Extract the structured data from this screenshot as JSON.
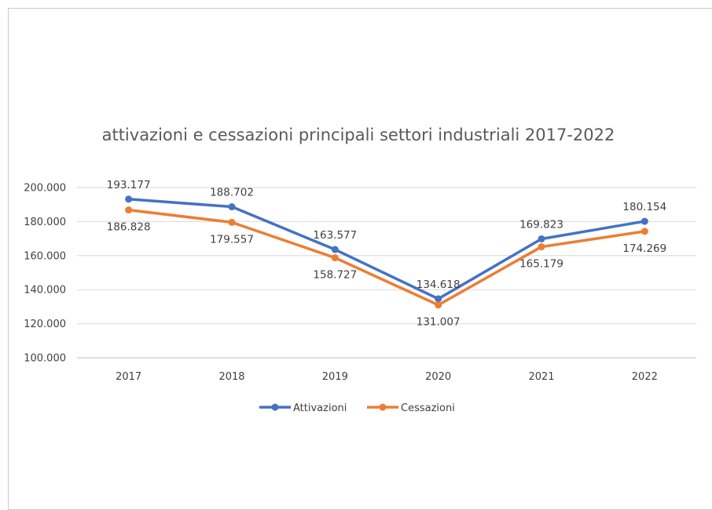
{
  "chart_data": {
    "type": "line",
    "title": "attivazioni e cessazioni principali settori industriali 2017-2022",
    "categories": [
      "2017",
      "2018",
      "2019",
      "2020",
      "2021",
      "2022"
    ],
    "series": [
      {
        "name": "Attivazioni",
        "color": "#4472C4",
        "values": [
          193177,
          188702,
          163577,
          134618,
          169823,
          180154
        ],
        "labels": [
          "193.177",
          "188.702",
          "163.577",
          "134.618",
          "169.823",
          "180.154"
        ],
        "label_position": "above"
      },
      {
        "name": "Cessazioni",
        "color": "#ED7D31",
        "values": [
          186828,
          179557,
          158727,
          131007,
          165179,
          174269
        ],
        "labels": [
          "186.828",
          "179.557",
          "158.727",
          "131.007",
          "165.179",
          "174.269"
        ],
        "label_position": "below"
      }
    ],
    "ylim": [
      100000,
      200000
    ],
    "yticks": [
      100000,
      120000,
      140000,
      160000,
      180000,
      200000
    ],
    "ytick_labels": [
      "100.000",
      "120.000",
      "140.000",
      "160.000",
      "180.000",
      "200.000"
    ],
    "grid": true,
    "legend": "bottom"
  }
}
